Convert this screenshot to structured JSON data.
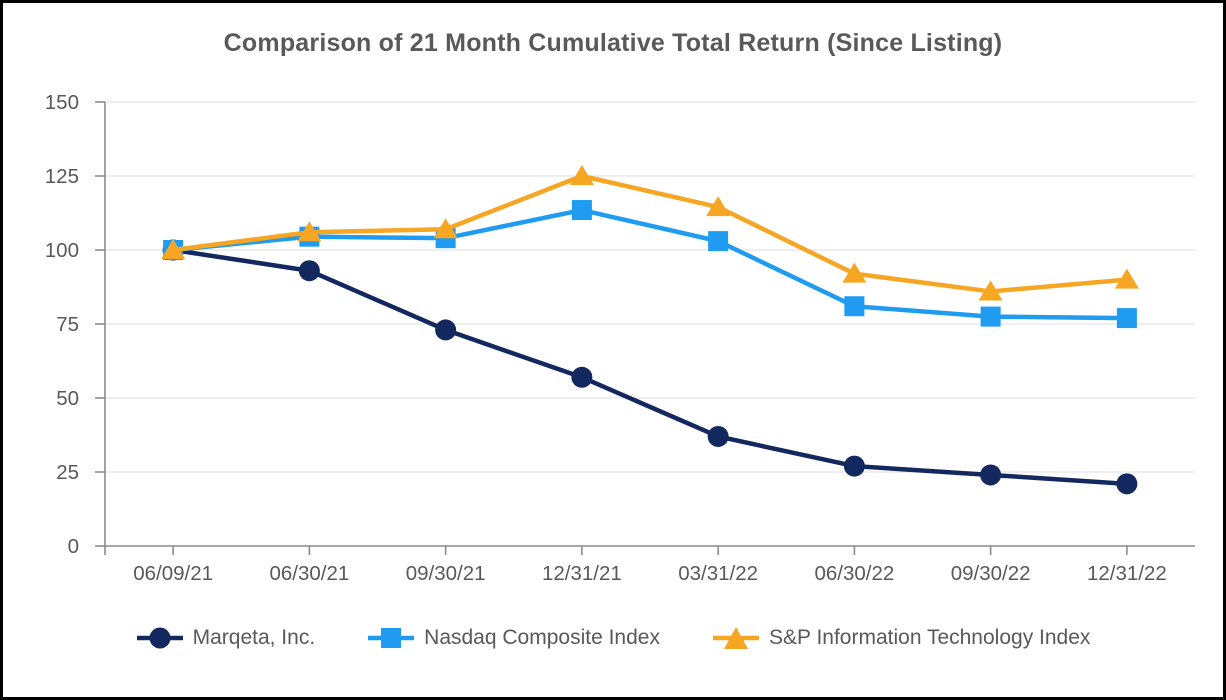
{
  "chart_data": {
    "type": "line",
    "title": "Comparison of 21 Month Cumulative Total Return (Since Listing)",
    "categories": [
      "06/09/21",
      "06/30/21",
      "09/30/21",
      "12/31/21",
      "03/31/22",
      "06/30/22",
      "09/30/22",
      "12/31/22"
    ],
    "series": [
      {
        "name": "Marqeta, Inc.",
        "marker": "circle",
        "color": "#13285E",
        "values": [
          100,
          93,
          73,
          57,
          37,
          27,
          24,
          21
        ]
      },
      {
        "name": "Nasdaq Composite Index",
        "marker": "square",
        "color": "#1F9CEF",
        "values": [
          100,
          104.5,
          104,
          113.5,
          103,
          81,
          77.5,
          77
        ]
      },
      {
        "name": "S&P Information Technology Index",
        "marker": "triangle",
        "color": "#F6A623",
        "values": [
          100,
          106,
          107,
          125,
          114.5,
          92,
          86,
          90
        ]
      }
    ],
    "ylim": [
      0,
      150
    ],
    "yticks": [
      0,
      25,
      50,
      75,
      100,
      125,
      150
    ],
    "xlabel": "",
    "ylabel": "",
    "grid": true,
    "legend_position": "bottom",
    "styles": {
      "text_color": "#595959",
      "grid_color": "#E4E4E4",
      "axis_color": "#8C8C8C"
    }
  }
}
